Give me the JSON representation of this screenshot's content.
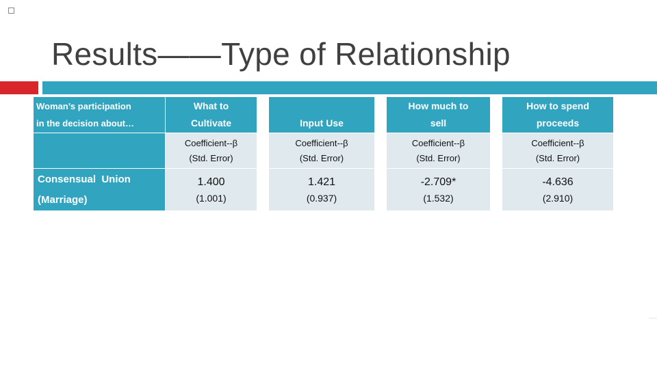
{
  "slide": {
    "title": "Results——Type of Relationship"
  },
  "table": {
    "corner_header": [
      "Woman’s participation",
      "in the decision about…"
    ],
    "columns": [
      {
        "header_lines": [
          "What to",
          "Cultivate"
        ],
        "sub_lines": [
          "Coefficient--β",
          "(Std. Error)"
        ]
      },
      {
        "header_lines": [
          "",
          "Input Use"
        ],
        "sub_lines": [
          "Coefficient--β",
          "(Std. Error)"
        ]
      },
      {
        "header_lines": [
          "How much to",
          "sell"
        ],
        "sub_lines": [
          "Coefficient--β",
          "(Std. Error)"
        ]
      },
      {
        "header_lines": [
          "How to spend",
          "proceeds"
        ],
        "sub_lines": [
          "Coefficient--β",
          "(Std. Error)"
        ]
      }
    ],
    "rows": [
      {
        "label_lines": [
          "Consensual  Union",
          "(Marriage)"
        ],
        "cells": [
          {
            "value": "1.400",
            "se": "(1.001)"
          },
          {
            "value": "1.421",
            "se": "(0.937)"
          },
          {
            "value": "-2.709*",
            "se": "(1.532)"
          },
          {
            "value": "-4.636",
            "se": "(2.910)"
          }
        ]
      }
    ]
  }
}
